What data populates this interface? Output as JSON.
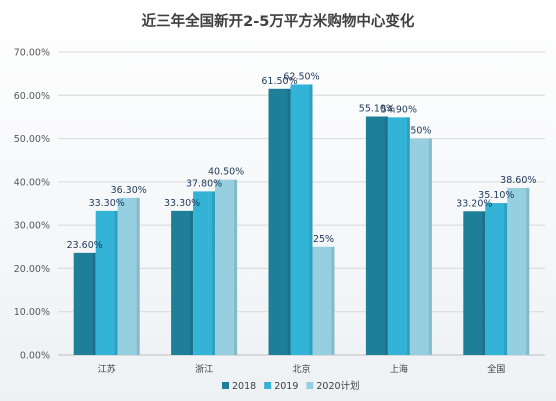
{
  "chart_data": {
    "type": "bar",
    "title": "近三年全国新开2-5万平方米购物中心变化",
    "categories": [
      "江苏",
      "浙江",
      "北京",
      "上海",
      "全国"
    ],
    "series": [
      {
        "name": "2018",
        "values": [
          23.6,
          33.3,
          61.5,
          55.1,
          33.2
        ],
        "labels": [
          "23.60%",
          "33.30%",
          "61.50%",
          "55.10%",
          "33.20%"
        ]
      },
      {
        "name": "2019",
        "values": [
          33.3,
          37.8,
          62.5,
          54.9,
          35.1
        ],
        "labels": [
          "33.30%",
          "37.80%",
          "62.50%",
          "54.90%",
          "35.10%"
        ]
      },
      {
        "name": "2020计划",
        "values": [
          36.3,
          40.5,
          25,
          50,
          38.6
        ],
        "labels": [
          "36.30%",
          "40.50%",
          "25%",
          "50%",
          "38.60%"
        ]
      }
    ],
    "y_ticks": [
      "0.00%",
      "10.00%",
      "20.00%",
      "30.00%",
      "40.00%",
      "50.00%",
      "60.00%",
      "70.00%"
    ],
    "ylim": [
      0,
      70
    ],
    "grid": true,
    "legend_position": "bottom",
    "colors": {
      "2018": "#1f7f99",
      "2019": "#33b3d6",
      "2020计划": "#96cfe0"
    }
  }
}
